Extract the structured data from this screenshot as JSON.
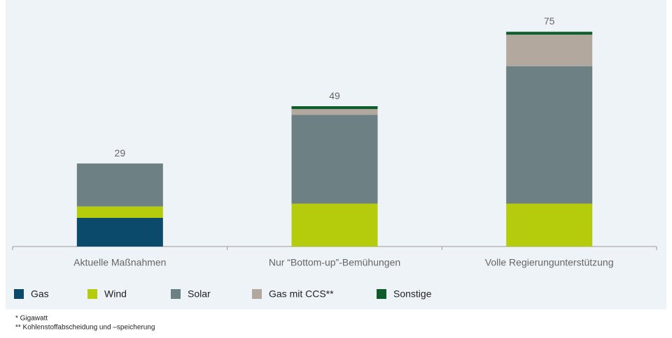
{
  "chart_data": {
    "type": "stacked-bar",
    "categories": [
      "Aktuelle Maßnahmen",
      "Nur “Bottom-up”-Bemühungen",
      "Volle Regierungunterstützung"
    ],
    "series": [
      {
        "name": "Gas",
        "color": "#0b4a6b",
        "values": [
          10,
          0,
          0
        ]
      },
      {
        "name": "Wind",
        "color": "#b5cc0d",
        "values": [
          4,
          15,
          15
        ]
      },
      {
        "name": "Solar",
        "color": "#6d8083",
        "values": [
          15,
          31,
          48
        ]
      },
      {
        "name": "Gas mit CCS**",
        "color": "#b3a89e",
        "values": [
          0,
          2,
          11
        ]
      },
      {
        "name": "Sonstige",
        "color": "#0d5a2a",
        "values": [
          0,
          1,
          1
        ]
      }
    ],
    "total_labels": [
      "29",
      "49",
      "75"
    ],
    "footnotes": [
      "* Gigawatt",
      "** Kohlenstoffabscheidung und –speicherung"
    ]
  }
}
